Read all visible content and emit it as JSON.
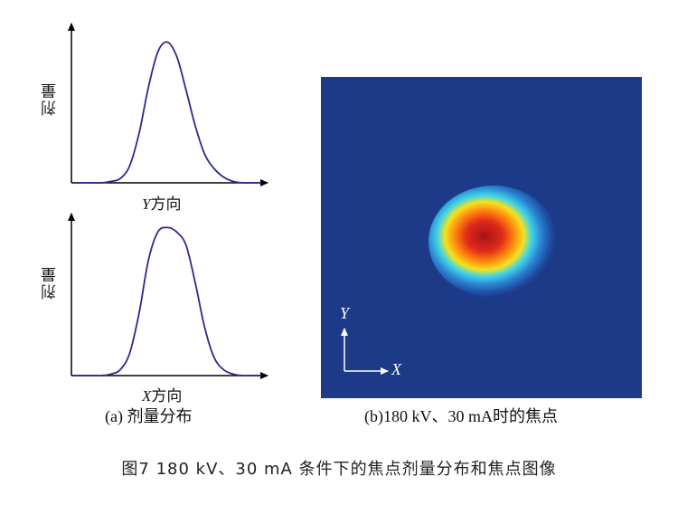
{
  "panel_a": {
    "top_plot": {
      "ylabel": "剂量",
      "xlabel_var": "Y",
      "xlabel_text": "方向"
    },
    "bottom_plot": {
      "ylabel": "剂量",
      "xlabel_var": "X",
      "xlabel_text": "方向"
    },
    "caption": "(a) 剂量分布"
  },
  "panel_b": {
    "axis_y": "Y",
    "axis_x": "X",
    "caption": "(b)180 kV、30 mA时的焦点"
  },
  "figure_caption": "图7   180 kV、30 mA 条件下的焦点剂量分布和焦点图像",
  "colors": {
    "curve": "#2b2a8a",
    "background_field": "#1c3a87",
    "hot_core": "#c0151b"
  },
  "chart_data": [
    {
      "type": "line",
      "title": "",
      "xlabel": "Y方向",
      "ylabel": "剂量",
      "x": [
        0,
        1,
        2,
        3,
        4,
        5,
        6,
        7,
        8,
        9,
        10,
        11,
        12,
        13,
        14,
        15,
        16,
        17,
        18,
        19,
        20
      ],
      "values": [
        0.0,
        0.0,
        0.0,
        0.0,
        0.01,
        0.03,
        0.12,
        0.35,
        0.68,
        0.93,
        1.0,
        0.9,
        0.66,
        0.4,
        0.2,
        0.1,
        0.04,
        0.01,
        0.0,
        0.0,
        0.0
      ],
      "ylim": [
        0,
        1.1
      ],
      "grid": false
    },
    {
      "type": "line",
      "title": "",
      "xlabel": "X方向",
      "ylabel": "剂量",
      "x": [
        0,
        1,
        2,
        3,
        4,
        5,
        6,
        7,
        8,
        9,
        10,
        11,
        12,
        13,
        14,
        15,
        16,
        17,
        18,
        19,
        20
      ],
      "values": [
        0.0,
        0.0,
        0.0,
        0.0,
        0.01,
        0.04,
        0.15,
        0.42,
        0.78,
        0.97,
        1.0,
        0.97,
        0.88,
        0.62,
        0.32,
        0.12,
        0.04,
        0.01,
        0.0,
        0.0,
        0.0
      ],
      "ylim": [
        0,
        1.1
      ],
      "grid": false
    }
  ]
}
